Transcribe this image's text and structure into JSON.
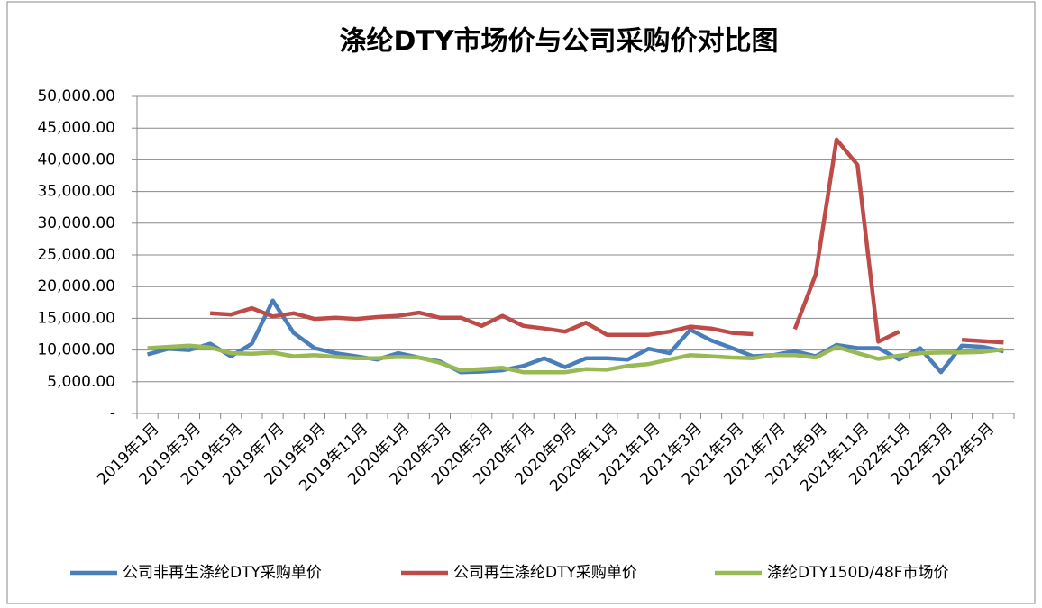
{
  "chart_data": {
    "type": "line",
    "title": "涤纶DTY市场价与公司采购价对比图",
    "categories": [
      "2019年1月",
      null,
      "2019年3月",
      null,
      "2019年5月",
      null,
      "2019年7月",
      null,
      "2019年9月",
      null,
      "2019年11月",
      null,
      "2020年1月",
      null,
      "2020年3月",
      null,
      "2020年5月",
      null,
      "2020年7月",
      null,
      "2020年9月",
      null,
      "2020年11月",
      null,
      "2021年1月",
      null,
      "2021年3月",
      null,
      "2021年5月",
      null,
      "2021年7月",
      null,
      "2021年9月",
      null,
      "2021年11月",
      null,
      "2022年1月",
      null,
      "2022年3月",
      null,
      "2022年5月",
      null
    ],
    "series": [
      {
        "name": "公司非再生涤纶DTY采购单价",
        "color": "#4a7ebb",
        "values": [
          9300,
          10200,
          10000,
          11000,
          9000,
          11000,
          17800,
          12700,
          10300,
          9500,
          9000,
          8500,
          9500,
          8800,
          8200,
          6500,
          6600,
          6800,
          7500,
          8700,
          7300,
          8700,
          8700,
          8500,
          10200,
          9500,
          13200,
          11500,
          10300,
          9000,
          9200,
          9800,
          9000,
          10800,
          10300,
          10300,
          8500,
          10300,
          6500,
          10700,
          10500,
          9800
        ]
      },
      {
        "name": "公司再生涤纶DTY采购单价",
        "color": "#be4b48",
        "values": [
          null,
          null,
          null,
          15800,
          15600,
          16600,
          15300,
          15800,
          14900,
          15100,
          14900,
          15200,
          15400,
          15900,
          15100,
          15100,
          13800,
          15400,
          13800,
          13400,
          12900,
          14300,
          12400,
          12400,
          12400,
          12900,
          13700,
          13400,
          12700,
          12500,
          null,
          13300,
          21900,
          43200,
          39200,
          11300,
          12900,
          null,
          null,
          11600,
          11400,
          11200
        ]
      },
      {
        "name": "涤纶DTY150D/48F市场价",
        "color": "#98b954",
        "values": [
          10300,
          10500,
          10700,
          10400,
          9500,
          9400,
          9600,
          9000,
          9200,
          8900,
          8700,
          8700,
          8900,
          8800,
          8000,
          6800,
          7000,
          7200,
          6500,
          6500,
          6500,
          7000,
          6900,
          7500,
          7800,
          8500,
          9200,
          9000,
          8800,
          8700,
          9200,
          9200,
          8800,
          10500,
          9500,
          8600,
          9100,
          9500,
          9600,
          9600,
          9700,
          10100
        ]
      }
    ],
    "ylim": [
      0,
      50000
    ],
    "yticks": [
      {
        "value": 0,
        "label": "-"
      },
      {
        "value": 5000,
        "label": "5,000.00"
      },
      {
        "value": 10000,
        "label": "10,000.00"
      },
      {
        "value": 15000,
        "label": "15,000.00"
      },
      {
        "value": 20000,
        "label": "20,000.00"
      },
      {
        "value": 25000,
        "label": "25,000.00"
      },
      {
        "value": 30000,
        "label": "30,000.00"
      },
      {
        "value": 35000,
        "label": "35,000.00"
      },
      {
        "value": 40000,
        "label": "40,000.00"
      },
      {
        "value": 45000,
        "label": "45,000.00"
      },
      {
        "value": 50000,
        "label": "50,000.00"
      }
    ],
    "grid": true,
    "legend": "bottom"
  }
}
